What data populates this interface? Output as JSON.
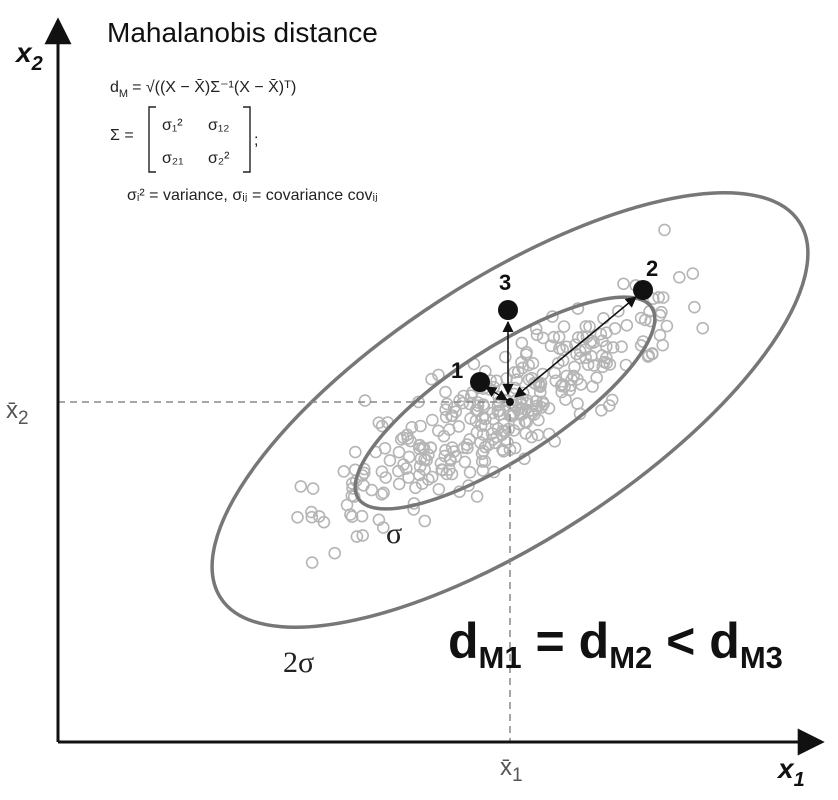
{
  "title": "Mahalanobis distance",
  "formula": {
    "dm_lhs": "d",
    "dm_sub": "M",
    "dm_body": "= √((X − X̄)Σ⁻¹(X − X̄)ᵀ)",
    "sigma_lhs": "Σ =",
    "m11": "σ₁²",
    "m12": "σ₁₂",
    "m21": "σ₂₁",
    "m22": "σ₂²",
    "note": "σᵢ² = variance, σᵢⱼ = covariance covᵢⱼ"
  },
  "axes": {
    "x_label": "x",
    "x_sub": "1",
    "y_label": "x",
    "y_sub": "2",
    "x_mean": "x̄",
    "x_mean_sub": "1",
    "y_mean": "x̄",
    "y_mean_sub": "2"
  },
  "ellipses": {
    "inner_label": "σ",
    "outer_label": "2σ"
  },
  "points": [
    {
      "label": "1"
    },
    {
      "label": "2"
    },
    {
      "label": "3"
    }
  ],
  "relation": {
    "d1": "d",
    "s1": "M1",
    "op1": "=",
    "d2": "d",
    "s2": "M2",
    "op2": "<",
    "d3": "d",
    "s3": "M3"
  },
  "colors": {
    "axis": "#111111",
    "ellipse": "#777777",
    "scatter": "#b5b5b5",
    "point": "#111111",
    "dashed": "#888888"
  }
}
